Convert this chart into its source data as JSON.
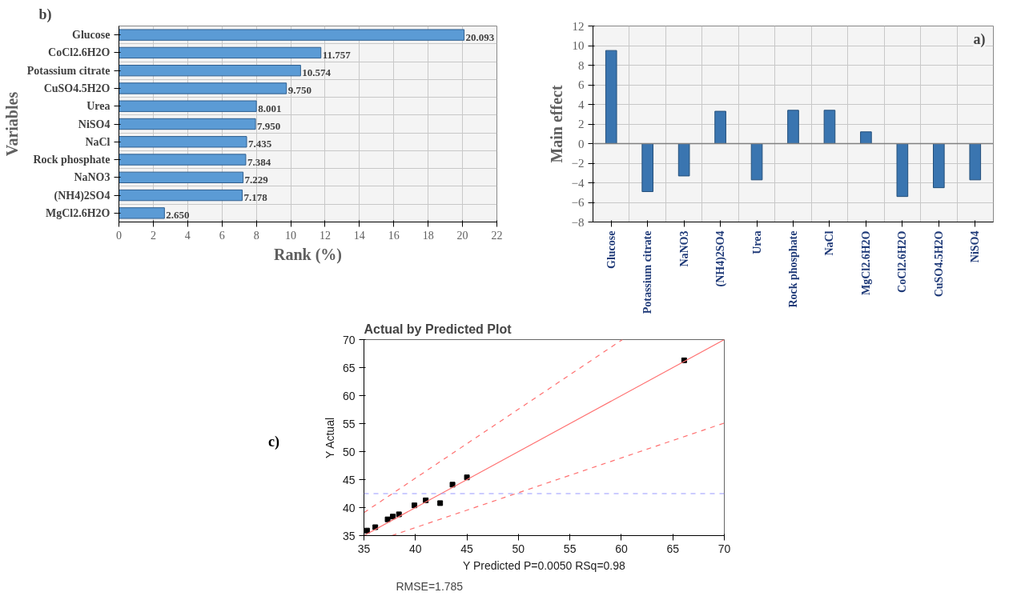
{
  "chart_data": [
    {
      "type": "bar",
      "orientation": "horizontal",
      "xlabel": "Rank (%)",
      "ylabel": "Variables",
      "annotations": [
        "b)"
      ],
      "categories": [
        "Glucose",
        "CoCl2.6H2O",
        "Potassium citrate",
        "CuSO4.5H2O",
        "Urea",
        "NiSO4",
        "NaCl",
        "Rock phosphate",
        "NaNO3",
        "(NH4)2SO4",
        "MgCl2.6H2O"
      ],
      "values": [
        20.093,
        11.757,
        10.574,
        9.75,
        8.001,
        7.95,
        7.435,
        7.384,
        7.229,
        7.178,
        2.65
      ],
      "value_labels": [
        "20.093",
        "11.757",
        "10.574",
        "9.750",
        "8.001",
        "7.950",
        "7.435",
        "7.384",
        "7.229",
        "7.178",
        "2.650"
      ],
      "color": "#5b9bd5",
      "xlim": [
        0,
        22
      ],
      "xticks": [
        0,
        2,
        4,
        6,
        8,
        10,
        12,
        14,
        16,
        18,
        20,
        22
      ],
      "grid": true
    },
    {
      "type": "bar",
      "ylabel": "Main effect",
      "annotations": [
        "a)"
      ],
      "categories": [
        "Glucose",
        "Potassium citrate",
        "NaNO3",
        "(NH4)2SO4",
        "Urea",
        "Rock phosphate",
        "NaCl",
        "MgCl2.6H2O",
        "CoCl2.6H2O",
        "CuSO4.5H2O",
        "NiSO4"
      ],
      "values": [
        9.5,
        -4.9,
        -3.3,
        3.3,
        -3.7,
        3.4,
        3.4,
        1.2,
        -5.4,
        -4.5,
        -3.7
      ],
      "color": "#3a75b0",
      "ylim": [
        -8,
        12
      ],
      "yticks": [
        -8,
        -6,
        -4,
        -2,
        0,
        2,
        4,
        6,
        8,
        10,
        12
      ],
      "grid": true
    },
    {
      "type": "scatter",
      "title": "Actual by Predicted Plot",
      "xlabel": "Y Predicted P=0.0050 RSq=0.98",
      "ylabel": "Y Actual",
      "annotations": [
        "RMSE=1.785",
        "c)"
      ],
      "xlim": [
        35,
        70
      ],
      "ylim": [
        35,
        70
      ],
      "xticks": [
        35,
        40,
        45,
        50,
        55,
        60,
        65,
        70
      ],
      "yticks": [
        35,
        40,
        45,
        50,
        55,
        60,
        65,
        70
      ],
      "ref_lines": [
        {
          "axis": "y",
          "value": 42.5,
          "color": "#9999ff",
          "line_style": "dashed"
        }
      ],
      "series": [
        {
          "type": "scatter",
          "marker": "square",
          "color": "#000000",
          "x": [
            35.3,
            36.1,
            37.3,
            37.8,
            38.4,
            39.9,
            41.0,
            42.4,
            43.6,
            45.0,
            66.1
          ],
          "values": [
            35.9,
            36.5,
            37.9,
            38.4,
            38.8,
            40.4,
            41.3,
            40.8,
            44.1,
            45.4,
            66.3
          ]
        },
        {
          "type": "line",
          "line_style": "solid",
          "color": "#ff7070",
          "x": [
            35,
            70
          ],
          "values": [
            35,
            70
          ]
        },
        {
          "type": "line",
          "line_style": "dashed",
          "color": "#ff7070",
          "x": [
            35,
            60.1
          ],
          "values": [
            39.1,
            70
          ]
        },
        {
          "type": "line",
          "line_style": "dashed",
          "color": "#ff7070",
          "x": [
            37.7,
            70
          ],
          "values": [
            35,
            55.1
          ]
        }
      ]
    }
  ]
}
